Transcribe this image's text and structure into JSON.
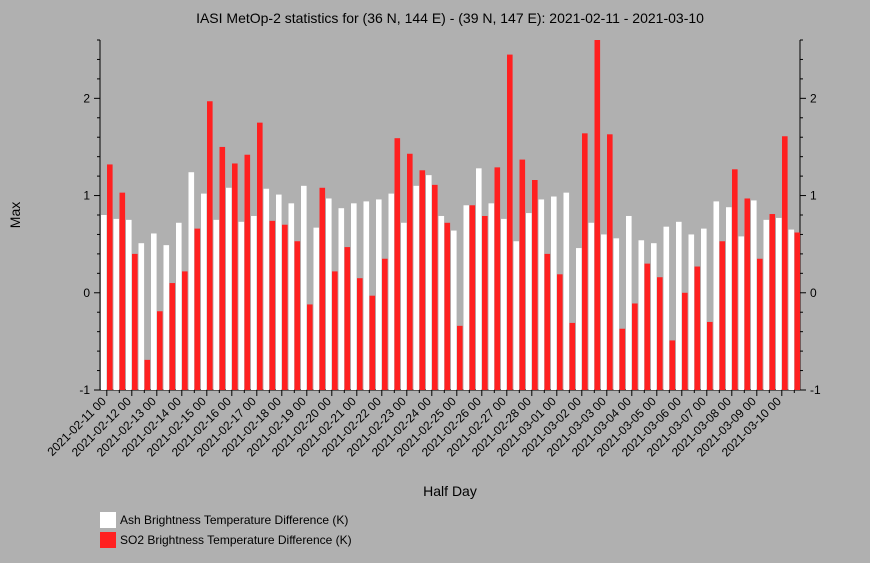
{
  "chart_data": {
    "type": "bar",
    "title": "IASI MetOp-2 statistics for (36 N, 144 E) - (39 N, 147 E): 2021-02-11 - 2021-03-10",
    "xlabel": "Half Day",
    "ylabel": "Max",
    "ylim": [
      -1,
      2.6
    ],
    "yticks": [
      -1,
      0,
      1,
      2
    ],
    "xtick_labels": [
      "2021-02-11 00",
      "2021-02-12 00",
      "2021-02-13 00",
      "2021-02-14 00",
      "2021-02-15 00",
      "2021-02-16 00",
      "2021-02-17 00",
      "2021-02-18 00",
      "2021-02-19 00",
      "2021-02-20 00",
      "2021-02-21 00",
      "2021-02-22 00",
      "2021-02-23 00",
      "2021-02-24 00",
      "2021-02-25 00",
      "2021-02-26 00",
      "2021-02-27 00",
      "2021-02-28 00",
      "2021-03-01 00",
      "2021-03-02 00",
      "2021-03-03 00",
      "2021-03-04 00",
      "2021-03-05 00",
      "2021-03-06 00",
      "2021-03-07 00",
      "2021-03-08 00",
      "2021-03-09 00",
      "2021-03-10 00"
    ],
    "legend_position": "bottom-left",
    "grid": false,
    "series": [
      {
        "name": "Ash Brightness Temperature Difference (K)",
        "color": "#ffffff",
        "values": [
          0.8,
          0.76,
          0.75,
          0.51,
          0.61,
          0.49,
          0.72,
          1.24,
          1.02,
          0.75,
          1.08,
          0.73,
          0.79,
          1.07,
          1.01,
          0.92,
          1.1,
          0.67,
          0.97,
          0.87,
          0.92,
          0.94,
          0.96,
          1.02,
          0.72,
          1.1,
          1.21,
          0.79,
          0.64,
          0.9,
          1.28,
          0.92,
          0.76,
          0.53,
          0.82,
          0.96,
          0.99,
          1.03,
          0.46,
          0.72,
          0.6,
          0.56,
          0.79,
          0.54,
          0.51,
          0.68,
          0.73,
          0.6,
          0.66,
          0.94,
          0.88,
          0.58,
          0.95,
          0.75,
          0.77,
          0.65
        ]
      },
      {
        "name": "SO2 Brightness Temperature Difference (K)",
        "color": "#ff2020",
        "values": [
          1.32,
          1.03,
          0.4,
          -0.69,
          -0.19,
          0.1,
          0.22,
          0.66,
          1.97,
          1.5,
          1.33,
          1.42,
          1.75,
          0.74,
          0.7,
          0.53,
          -0.12,
          1.08,
          0.22,
          0.47,
          0.15,
          -0.03,
          0.35,
          1.59,
          1.43,
          1.26,
          1.11,
          0.72,
          -0.34,
          0.9,
          0.79,
          1.29,
          2.45,
          1.37,
          1.16,
          0.4,
          0.19,
          -0.31,
          1.64,
          2.6,
          1.63,
          -0.37,
          -0.11,
          0.3,
          0.16,
          -0.49,
          0.0,
          0.27,
          -0.3,
          0.53,
          1.27,
          0.97,
          0.35,
          0.81,
          1.61,
          0.62
        ]
      }
    ]
  }
}
